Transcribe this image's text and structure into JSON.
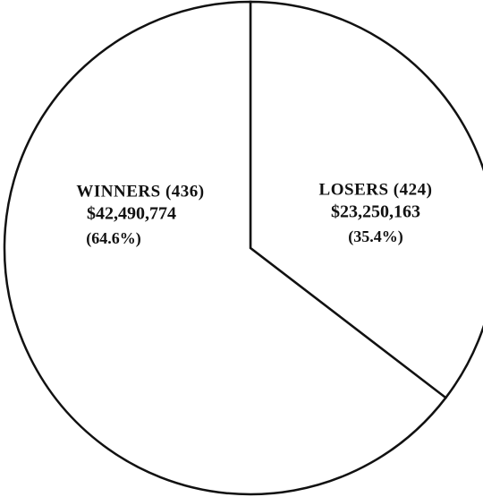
{
  "chart_data": {
    "type": "pie",
    "categories": [
      "LOSERS (424)",
      "WINNERS (436)"
    ],
    "values": [
      35.4,
      64.6
    ],
    "value_labels": [
      "(35.4%)",
      "(64.6%)"
    ],
    "amount_labels": [
      "$23,250,163",
      "$42,490,774"
    ],
    "colors": [
      "#ffffff",
      "#ffffff"
    ],
    "start_angle": "top",
    "direction": "clockwise"
  }
}
